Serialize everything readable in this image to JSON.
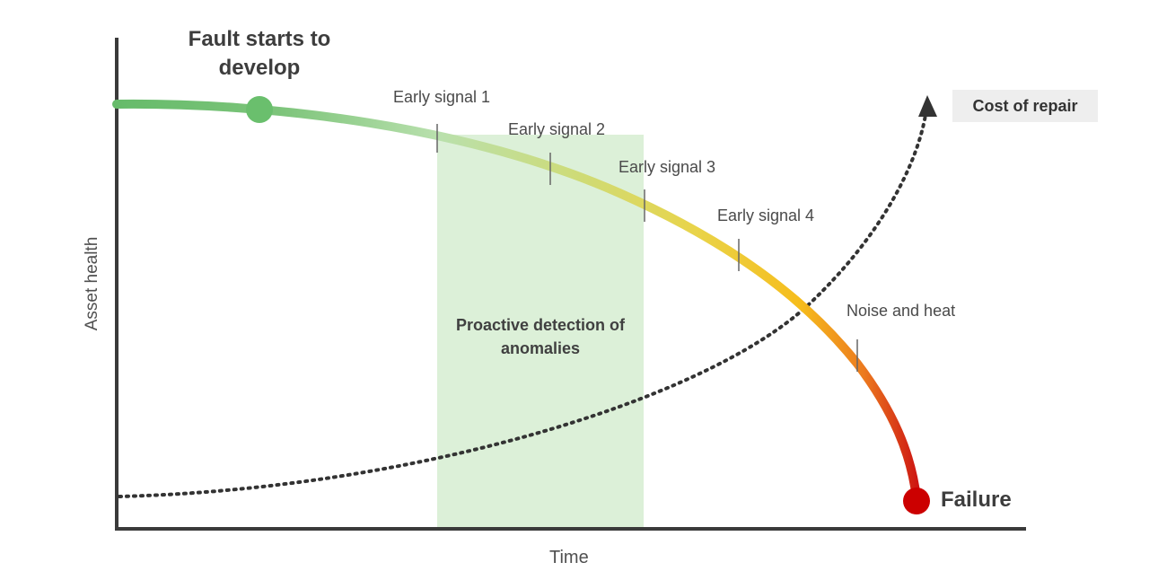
{
  "labels": {
    "fault_start": "Fault starts to develop",
    "failure": "Failure",
    "cost_of_repair": "Cost of repair",
    "proactive_detection": "Proactive detection of anomalies",
    "x_axis": "Time",
    "y_axis": "Asset health"
  },
  "signals": [
    {
      "name": "early-signal-1",
      "label": "Early signal 1"
    },
    {
      "name": "early-signal-2",
      "label": "Early signal 2"
    },
    {
      "name": "early-signal-3",
      "label": "Early signal 3"
    },
    {
      "name": "early-signal-4",
      "label": "Early signal 4"
    },
    {
      "name": "noise-and-heat",
      "label": "Noise and heat"
    }
  ],
  "colors": {
    "healthy": "#66bb6a",
    "mid": "#c8dd6e",
    "warning": "#f5c518",
    "failing": "#e8731c",
    "failure": "#cc0000",
    "detection_zone": "#dcf0d8",
    "axis": "#3a3a3a",
    "cost_line": "#333333",
    "cost_box": "#eeeeee"
  }
}
